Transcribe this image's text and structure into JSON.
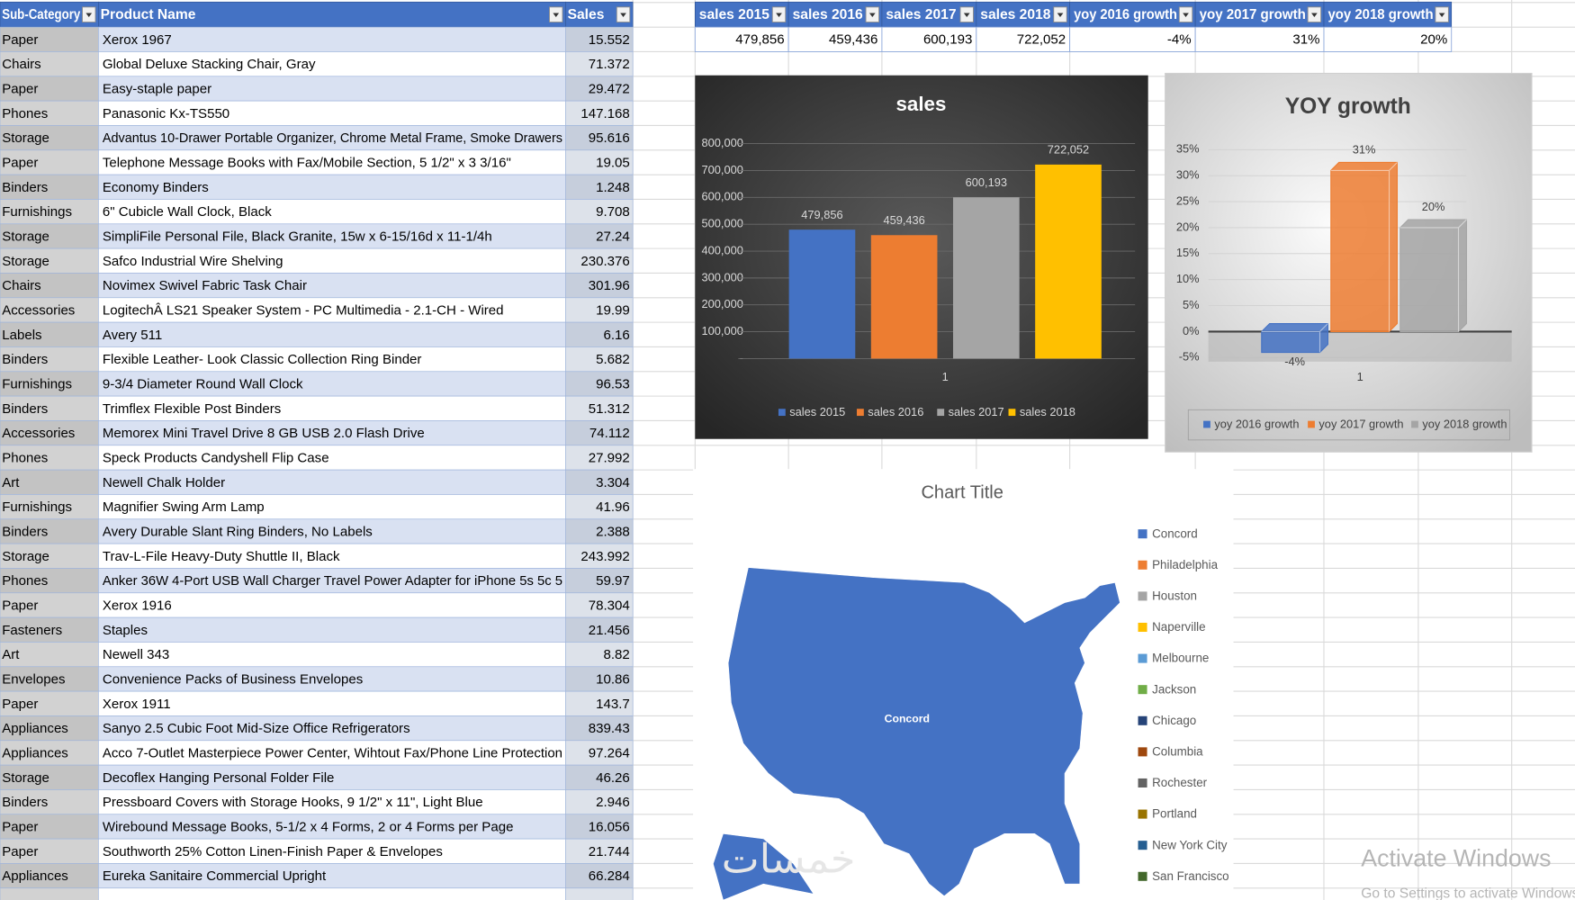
{
  "table": {
    "headers": [
      "Sub-Category",
      "Product Name",
      "Sales"
    ],
    "rows": [
      [
        "Paper",
        "Xerox 1967",
        "15.552"
      ],
      [
        "Chairs",
        "Global Deluxe Stacking Chair, Gray",
        "71.372"
      ],
      [
        "Paper",
        "Easy-staple paper",
        "29.472"
      ],
      [
        "Phones",
        "Panasonic Kx-TS550",
        "147.168"
      ],
      [
        "Storage",
        "Advantus 10-Drawer Portable Organizer, Chrome Metal Frame, Smoke Drawers",
        "95.616"
      ],
      [
        "Paper",
        "Telephone Message Books with Fax/Mobile Section, 5 1/2\" x 3 3/16\"",
        "19.05"
      ],
      [
        "Binders",
        "Economy Binders",
        "1.248"
      ],
      [
        "Furnishings",
        "6\" Cubicle Wall Clock, Black",
        "9.708"
      ],
      [
        "Storage",
        "SimpliFile Personal File, Black Granite, 15w x 6-15/16d x 11-1/4h",
        "27.24"
      ],
      [
        "Storage",
        "Safco Industrial Wire Shelving",
        "230.376"
      ],
      [
        "Chairs",
        "Novimex Swivel Fabric Task Chair",
        "301.96"
      ],
      [
        "Accessories",
        "LogitechÂ LS21 Speaker System - PC Multimedia - 2.1-CH - Wired",
        "19.99"
      ],
      [
        "Labels",
        "Avery 511",
        "6.16"
      ],
      [
        "Binders",
        "Flexible Leather- Look Classic Collection Ring Binder",
        "5.682"
      ],
      [
        "Furnishings",
        "9-3/4 Diameter Round Wall Clock",
        "96.53"
      ],
      [
        "Binders",
        "Trimflex Flexible Post Binders",
        "51.312"
      ],
      [
        "Accessories",
        "Memorex Mini Travel Drive 8 GB USB 2.0 Flash Drive",
        "74.112"
      ],
      [
        "Phones",
        "Speck Products Candyshell Flip Case",
        "27.992"
      ],
      [
        "Art",
        "Newell Chalk Holder",
        "3.304"
      ],
      [
        "Furnishings",
        "Magnifier Swing Arm Lamp",
        "41.96"
      ],
      [
        "Binders",
        "Avery Durable Slant Ring Binders, No Labels",
        "2.388"
      ],
      [
        "Storage",
        "Trav-L-File Heavy-Duty Shuttle II, Black",
        "243.992"
      ],
      [
        "Phones",
        "Anker 36W 4-Port USB Wall Charger Travel Power Adapter for iPhone 5s 5c 5",
        "59.97"
      ],
      [
        "Paper",
        "Xerox 1916",
        "78.304"
      ],
      [
        "Fasteners",
        "Staples",
        "21.456"
      ],
      [
        "Art",
        "Newell 343",
        "8.82"
      ],
      [
        "Envelopes",
        "Convenience Packs of Business Envelopes",
        "10.86"
      ],
      [
        "Paper",
        "Xerox 1911",
        "143.7"
      ],
      [
        "Appliances",
        "Sanyo 2.5 Cubic Foot Mid-Size Office Refrigerators",
        "839.43"
      ],
      [
        "Appliances",
        "Acco 7-Outlet Masterpiece Power Center, Wihtout Fax/Phone Line Protection",
        "97.264"
      ],
      [
        "Storage",
        "Decoflex Hanging Personal Folder File",
        "46.26"
      ],
      [
        "Binders",
        "Pressboard Covers with Storage Hooks, 9 1/2\" x 11\", Light Blue",
        "2.946"
      ],
      [
        "Paper",
        "Wirebound Message Books, 5-1/2 x 4 Forms, 2 or 4 Forms per Page",
        "16.056"
      ],
      [
        "Paper",
        "Southworth 25% Cotton Linen-Finish Paper & Envelopes",
        "21.744"
      ],
      [
        "Appliances",
        "Eureka Sanitaire  Commercial Upright",
        "66.284"
      ]
    ]
  },
  "summary": {
    "headers": [
      "sales 2015",
      "sales 2016",
      "sales 2017",
      "sales 2018",
      "yoy 2016 growth",
      "yoy 2017 growth",
      "yoy 2018 growth"
    ],
    "values": [
      "479,856",
      "459,436",
      "600,193",
      "722,052",
      "-4%",
      "31%",
      "20%"
    ]
  },
  "chart_data": [
    {
      "type": "bar",
      "title": "sales",
      "categories": [
        "1"
      ],
      "series": [
        {
          "name": "sales 2015",
          "color": "#4472c4",
          "values": [
            479856
          ],
          "value_labels": [
            "479,856"
          ]
        },
        {
          "name": "sales 2016",
          "color": "#ed7d31",
          "values": [
            459436
          ],
          "value_labels": [
            "459,436"
          ]
        },
        {
          "name": "sales 2017",
          "color": "#a5a5a5",
          "values": [
            600193
          ],
          "value_labels": [
            "600,193"
          ]
        },
        {
          "name": "sales 2018",
          "color": "#ffc000",
          "values": [
            722052
          ],
          "value_labels": [
            "722,052"
          ]
        }
      ],
      "ylim": [
        0,
        800000
      ],
      "yticks": [
        {
          "value": 0,
          "label": "-"
        },
        {
          "value": 100000,
          "label": "100,000"
        },
        {
          "value": 200000,
          "label": "200,000"
        },
        {
          "value": 300000,
          "label": "300,000"
        },
        {
          "value": 400000,
          "label": "400,000"
        },
        {
          "value": 500000,
          "label": "500,000"
        },
        {
          "value": 600000,
          "label": "600,000"
        },
        {
          "value": 700000,
          "label": "700,000"
        },
        {
          "value": 800000,
          "label": "800,000"
        }
      ],
      "grid": true,
      "legend": "bottom"
    },
    {
      "type": "bar3d",
      "title": "YOY growth",
      "categories": [
        "1"
      ],
      "series": [
        {
          "name": "yoy 2016 growth",
          "color": "#4472c4",
          "values": [
            -4
          ],
          "value_labels": [
            "-4%"
          ]
        },
        {
          "name": "yoy 2017 growth",
          "color": "#ed7d31",
          "values": [
            31
          ],
          "value_labels": [
            "31%"
          ]
        },
        {
          "name": "yoy 2018 growth",
          "color": "#a5a5a5",
          "values": [
            20
          ],
          "value_labels": [
            "20%"
          ]
        }
      ],
      "ylim": [
        -5,
        35
      ],
      "yticks": [
        {
          "value": -5,
          "label": "-5%"
        },
        {
          "value": 0,
          "label": "0%"
        },
        {
          "value": 5,
          "label": "5%"
        },
        {
          "value": 10,
          "label": "10%"
        },
        {
          "value": 15,
          "label": "15%"
        },
        {
          "value": 20,
          "label": "20%"
        },
        {
          "value": 25,
          "label": "25%"
        },
        {
          "value": 30,
          "label": "30%"
        },
        {
          "value": 35,
          "label": "35%"
        }
      ],
      "grid": true,
      "legend": "bottom"
    },
    {
      "type": "map",
      "title": "Chart Title",
      "legend": "right",
      "series": [
        {
          "name": "Concord",
          "color": "#4472c4"
        },
        {
          "name": "Philadelphia",
          "color": "#ed7d31"
        },
        {
          "name": "Houston",
          "color": "#a5a5a5"
        },
        {
          "name": "Naperville",
          "color": "#ffc000"
        },
        {
          "name": "Melbourne",
          "color": "#5b9bd5"
        },
        {
          "name": "Jackson",
          "color": "#70ad47"
        },
        {
          "name": "Chicago",
          "color": "#264478"
        },
        {
          "name": "Columbia",
          "color": "#9e480e"
        },
        {
          "name": "Rochester",
          "color": "#636363"
        },
        {
          "name": "Portland",
          "color": "#997300"
        },
        {
          "name": "New York City",
          "color": "#255e91"
        },
        {
          "name": "San Francisco",
          "color": "#43682b"
        }
      ]
    }
  ],
  "watermark": {
    "logo": "خمسات",
    "title": "Activate Windows",
    "subtitle": "Go to Settings to activate Windows."
  }
}
